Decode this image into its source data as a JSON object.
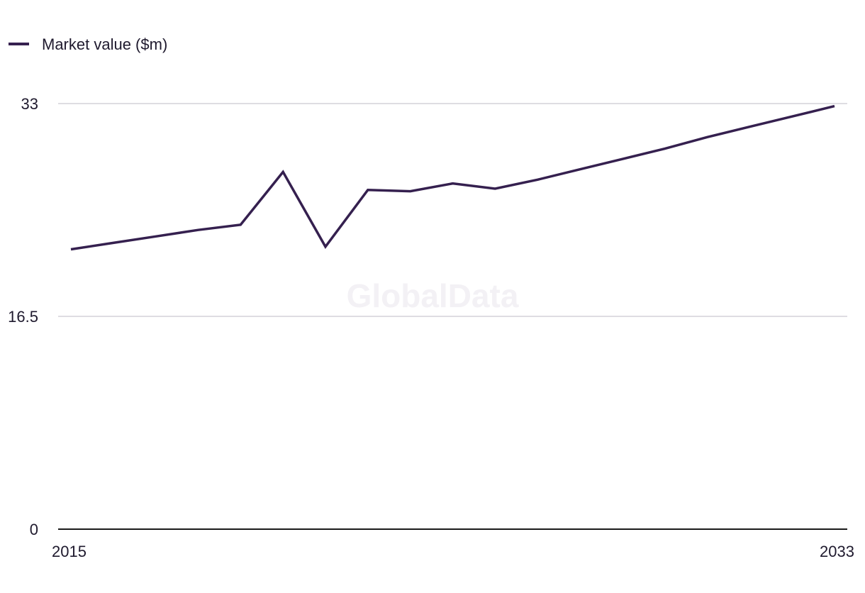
{
  "watermark": "GlobalData",
  "colors": {
    "series": "#35204f",
    "grid": "#d4d2d8",
    "axis": "#1a1a1a",
    "text": "#1f1a2e"
  },
  "chart_data": {
    "type": "line",
    "x": [
      2015,
      2016,
      2017,
      2018,
      2019,
      2020,
      2021,
      2022,
      2023,
      2024,
      2025,
      2026,
      2027,
      2028,
      2029,
      2030,
      2031,
      2032,
      2033
    ],
    "series": [
      {
        "name": "Market value ($m)",
        "values": [
          21.7,
          22.2,
          22.7,
          23.2,
          23.6,
          27.7,
          21.9,
          26.3,
          26.2,
          26.8,
          26.4,
          27.1,
          27.9,
          28.7,
          29.5,
          30.4,
          31.2,
          32.0,
          32.8
        ]
      }
    ],
    "ylim": [
      0,
      33
    ],
    "yticks": [
      "0",
      "16.5",
      "33"
    ],
    "xticks": [
      "2015",
      "2033"
    ],
    "grid": true,
    "legend": "top-left"
  }
}
